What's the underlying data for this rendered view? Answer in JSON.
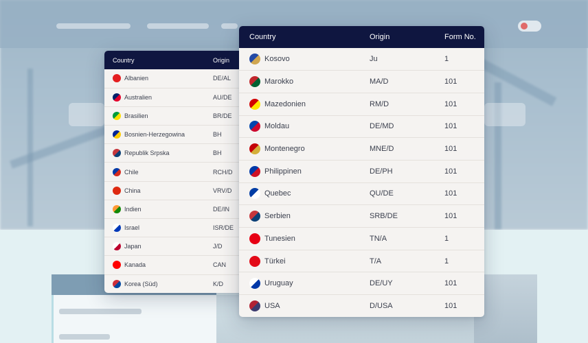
{
  "small_table": {
    "headers": [
      "Country",
      "Origin"
    ],
    "rows": [
      {
        "country": "Albanien",
        "origin": "DE/AL",
        "flag_icon": "albania-flag-icon",
        "flag_colors": [
          "#e41e20",
          "#e41e20"
        ]
      },
      {
        "country": "Australien",
        "origin": "AU/DE",
        "flag_icon": "australia-flag-icon",
        "flag_colors": [
          "#012169",
          "#e4002b"
        ]
      },
      {
        "country": "Brasilien",
        "origin": "BR/DE",
        "flag_icon": "brazil-flag-icon",
        "flag_colors": [
          "#009c3b",
          "#ffdf00"
        ]
      },
      {
        "country": "Bosnien-Herzegowina",
        "origin": "BH",
        "flag_icon": "bosnia-flag-icon",
        "flag_colors": [
          "#002395",
          "#fecb00"
        ]
      },
      {
        "country": "Republik Srpska",
        "origin": "BH",
        "flag_icon": "srpska-flag-icon",
        "flag_colors": [
          "#c6363c",
          "#0c4076"
        ]
      },
      {
        "country": "Chile",
        "origin": "RCH/D",
        "flag_icon": "chile-flag-icon",
        "flag_colors": [
          "#0039a6",
          "#d52b1e"
        ]
      },
      {
        "country": "China",
        "origin": "VRV/D",
        "flag_icon": "china-flag-icon",
        "flag_colors": [
          "#de2910",
          "#de2910"
        ]
      },
      {
        "country": "Indien",
        "origin": "DE/IN",
        "flag_icon": "india-flag-icon",
        "flag_colors": [
          "#ff9933",
          "#138808"
        ]
      },
      {
        "country": "Israel",
        "origin": "ISR/DE",
        "flag_icon": "israel-flag-icon",
        "flag_colors": [
          "#ffffff",
          "#0038b8"
        ]
      },
      {
        "country": "Japan",
        "origin": "J/D",
        "flag_icon": "japan-flag-icon",
        "flag_colors": [
          "#ffffff",
          "#bc002d"
        ]
      },
      {
        "country": "Kanada",
        "origin": "CAN",
        "flag_icon": "canada-flag-icon",
        "flag_colors": [
          "#ff0000",
          "#ff0000"
        ]
      },
      {
        "country": "Korea (Süd)",
        "origin": "K/D",
        "flag_icon": "south-korea-flag-icon",
        "flag_colors": [
          "#cd2e3a",
          "#0047a0"
        ]
      }
    ]
  },
  "large_table": {
    "headers": [
      "Country",
      "Origin",
      "Form No."
    ],
    "rows": [
      {
        "country": "Kosovo",
        "origin": "Ju",
        "form": "1",
        "flag_icon": "kosovo-flag-icon",
        "flag_colors": [
          "#244aa5",
          "#d0a650"
        ]
      },
      {
        "country": "Marokko",
        "origin": "MA/D",
        "form": "101",
        "flag_icon": "morocco-flag-icon",
        "flag_colors": [
          "#c1272d",
          "#006233"
        ]
      },
      {
        "country": "Mazedonien",
        "origin": "RM/D",
        "form": "101",
        "flag_icon": "macedonia-flag-icon",
        "flag_colors": [
          "#d20000",
          "#ffe600"
        ]
      },
      {
        "country": "Moldau",
        "origin": "DE/MD",
        "form": "101",
        "flag_icon": "moldova-flag-icon",
        "flag_colors": [
          "#0046ae",
          "#cc092f"
        ]
      },
      {
        "country": "Montenegro",
        "origin": "MNE/D",
        "form": "101",
        "flag_icon": "montenegro-flag-icon",
        "flag_colors": [
          "#c40308",
          "#d4af3a"
        ]
      },
      {
        "country": "Philippinen",
        "origin": "DE/PH",
        "form": "101",
        "flag_icon": "philippines-flag-icon",
        "flag_colors": [
          "#0038a8",
          "#ce1126"
        ]
      },
      {
        "country": "Quebec",
        "origin": "QU/DE",
        "form": "101",
        "flag_icon": "quebec-flag-icon",
        "flag_colors": [
          "#003da5",
          "#ffffff"
        ]
      },
      {
        "country": "Serbien",
        "origin": "SRB/DE",
        "form": "101",
        "flag_icon": "serbia-flag-icon",
        "flag_colors": [
          "#c6363c",
          "#0c4076"
        ]
      },
      {
        "country": "Tunesien",
        "origin": "TN/A",
        "form": "1",
        "flag_icon": "tunisia-flag-icon",
        "flag_colors": [
          "#e70013",
          "#e70013"
        ]
      },
      {
        "country": "Türkei",
        "origin": "T/A",
        "form": "1",
        "flag_icon": "turkey-flag-icon",
        "flag_colors": [
          "#e30a17",
          "#e30a17"
        ]
      },
      {
        "country": "Uruguay",
        "origin": "DE/UY",
        "form": "101",
        "flag_icon": "uruguay-flag-icon",
        "flag_colors": [
          "#ffffff",
          "#0038a8"
        ]
      },
      {
        "country": "USA",
        "origin": "D/USA",
        "form": "101",
        "flag_icon": "usa-flag-icon",
        "flag_colors": [
          "#b22234",
          "#3c3b6e"
        ]
      }
    ]
  },
  "colors": {
    "header_bg": "#0f1640",
    "header_text": "#ffffff",
    "table_bg": "#f5f3f1",
    "row_divider": "#e4e0dc",
    "body_text": "#3a3f4d"
  }
}
